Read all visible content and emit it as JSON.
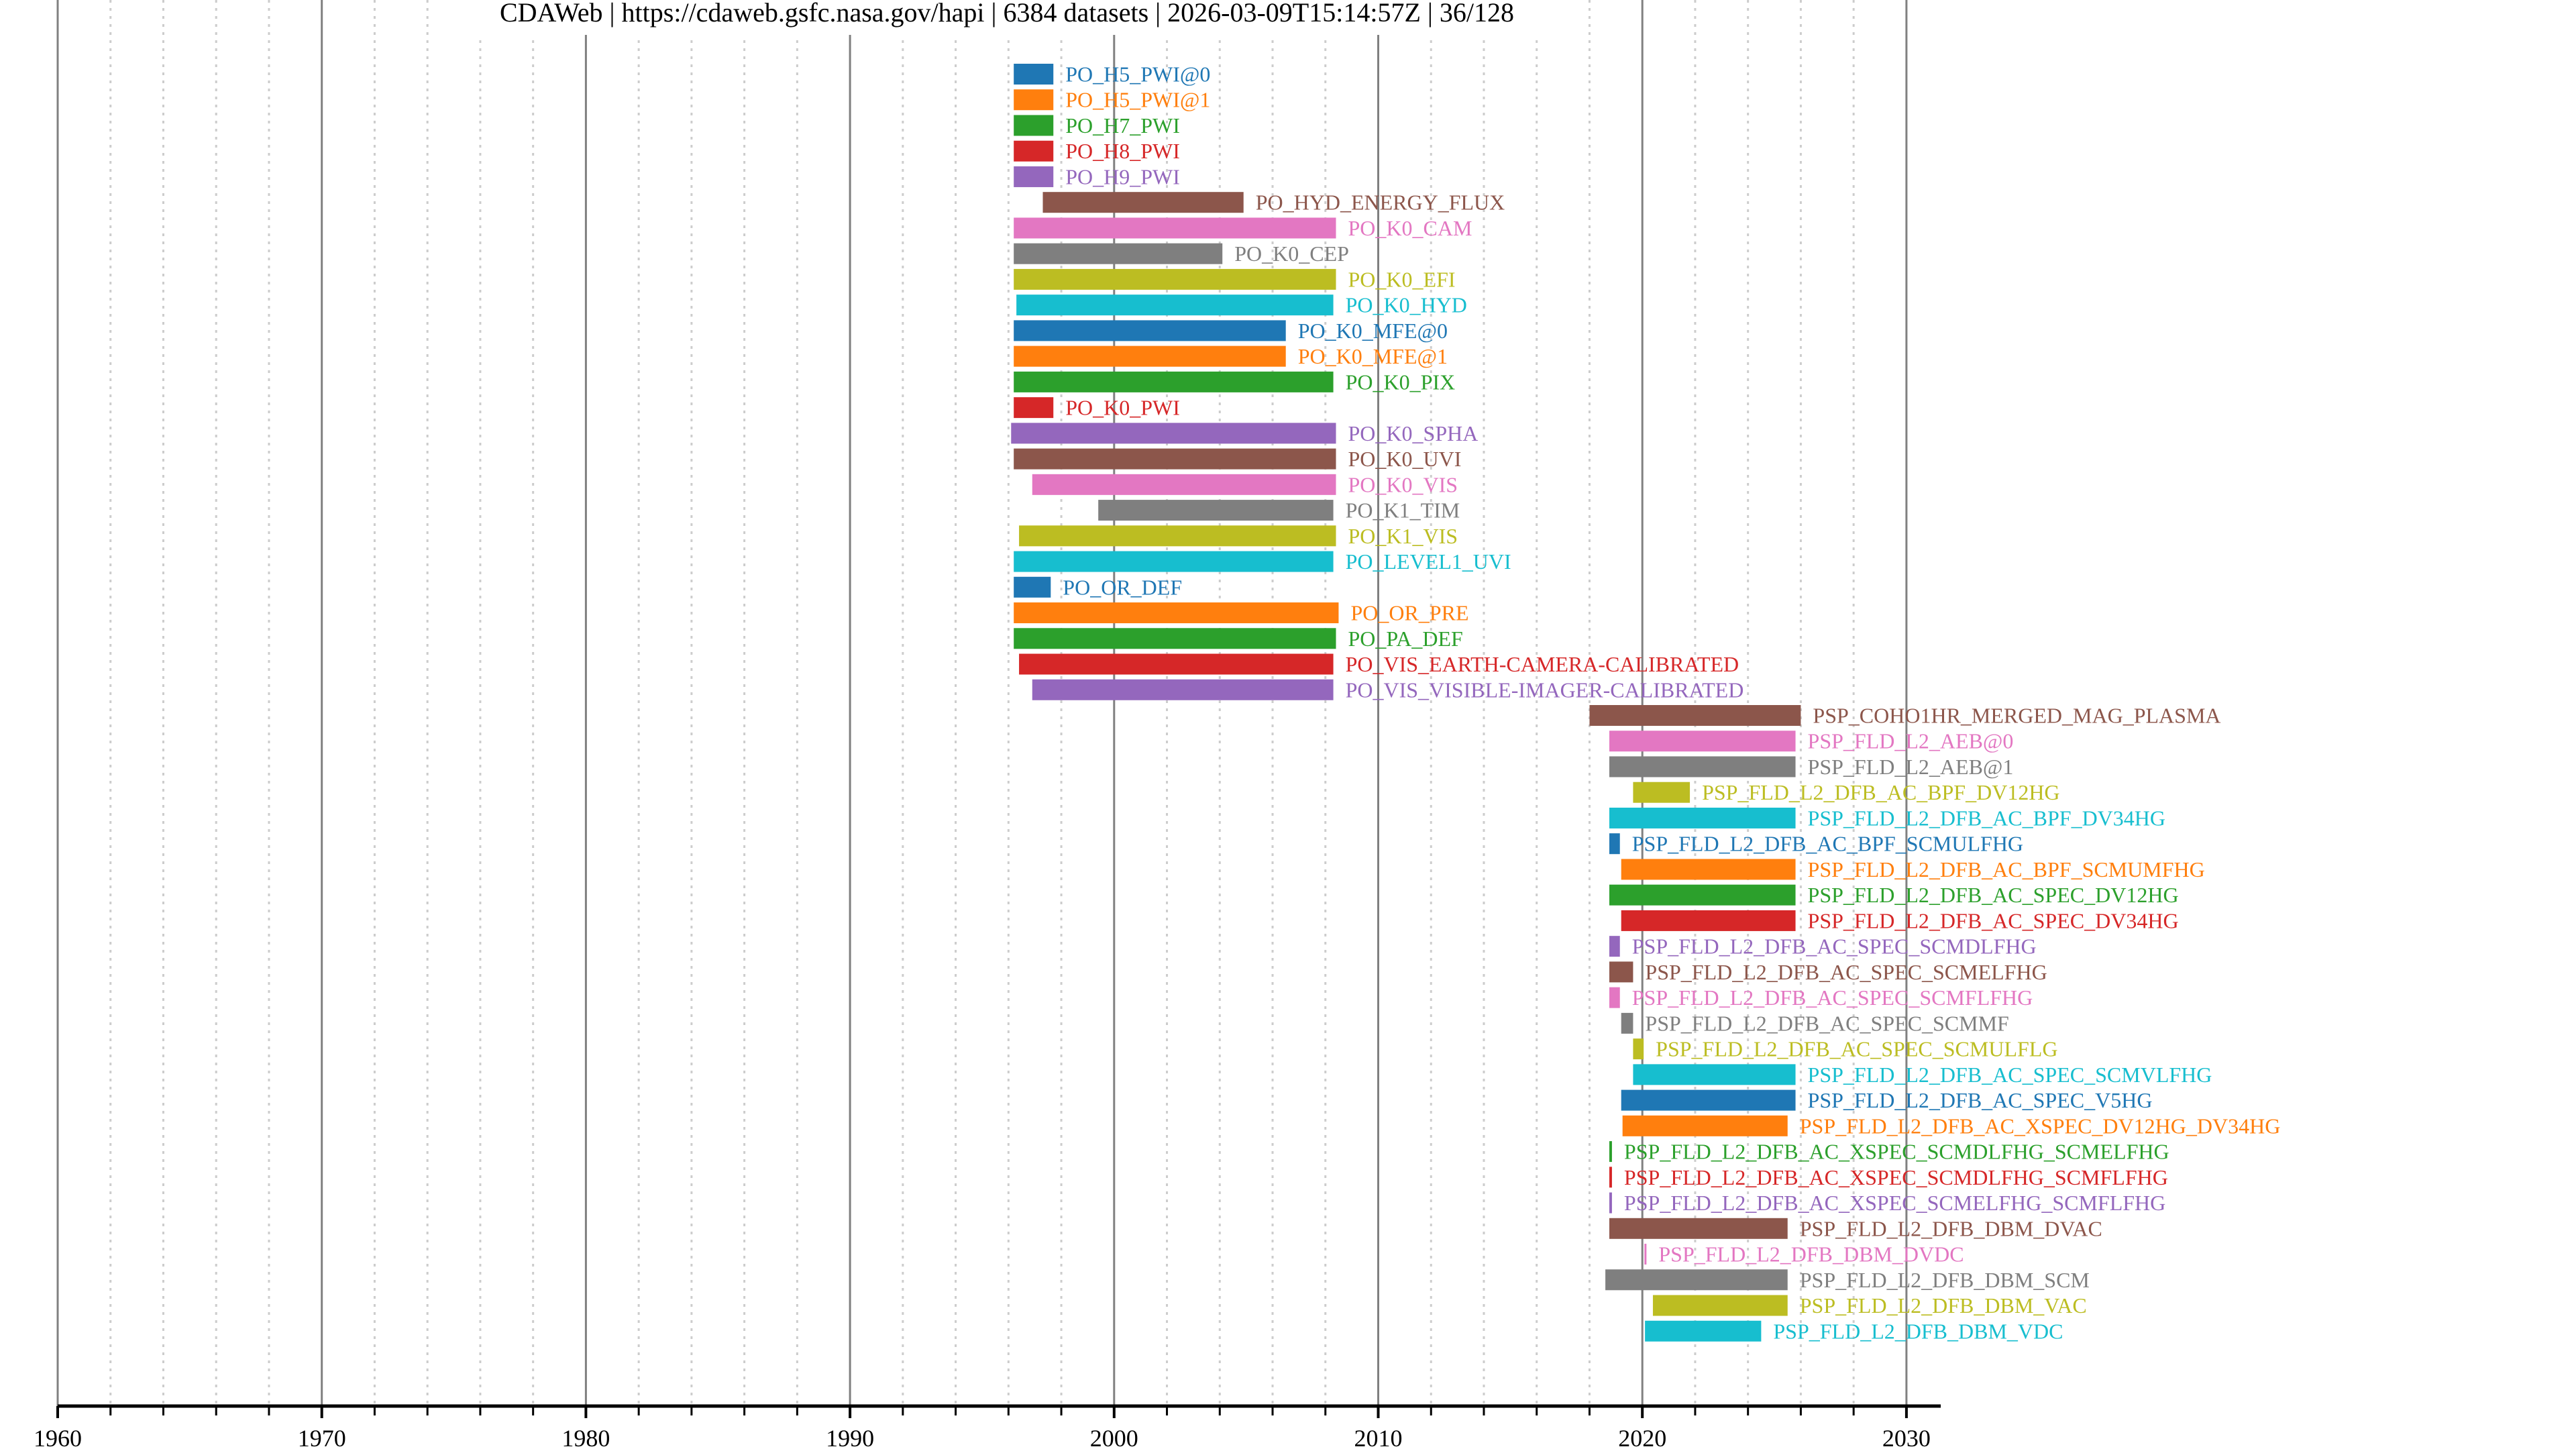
{
  "chart_data": {
    "type": "bar",
    "orientation": "horizontal-timeline",
    "title": "CDAWeb | https://cdaweb.gsfc.nasa.gov/hapi | 6384 datasets | 2026-03-09T15:14:57Z | 36/128",
    "xlabel": "",
    "ylabel": "",
    "xlim": [
      1960,
      2031.2
    ],
    "xticks": [
      1960,
      1970,
      1980,
      1990,
      2000,
      2010,
      2020,
      2030
    ],
    "xtick_labels": [
      "1960",
      "1970",
      "1980",
      "1990",
      "2000",
      "2010",
      "2020",
      "2030"
    ],
    "minor_tick_step_years": 2,
    "grid": true,
    "palette": [
      "#1f77b4",
      "#ff7f0e",
      "#2ca02c",
      "#d62728",
      "#9467bd",
      "#8c564b",
      "#e377c2",
      "#7f7f7f",
      "#bcbd22",
      "#17becf"
    ],
    "series": [
      {
        "name": "PO_H5_PWI@0",
        "start": 1996.2,
        "stop": 1997.7
      },
      {
        "name": "PO_H5_PWI@1",
        "start": 1996.2,
        "stop": 1997.7
      },
      {
        "name": "PO_H7_PWI",
        "start": 1996.2,
        "stop": 1997.7
      },
      {
        "name": "PO_H8_PWI",
        "start": 1996.2,
        "stop": 1997.7
      },
      {
        "name": "PO_H9_PWI",
        "start": 1996.2,
        "stop": 1997.7
      },
      {
        "name": "PO_HYD_ENERGY_FLUX",
        "start": 1997.3,
        "stop": 2004.9
      },
      {
        "name": "PO_K0_CAM",
        "start": 1996.2,
        "stop": 2008.4
      },
      {
        "name": "PO_K0_CEP",
        "start": 1996.2,
        "stop": 2004.1
      },
      {
        "name": "PO_K0_EFI",
        "start": 1996.2,
        "stop": 2008.4
      },
      {
        "name": "PO_K0_HYD",
        "start": 1996.3,
        "stop": 2008.3
      },
      {
        "name": "PO_K0_MFE@0",
        "start": 1996.2,
        "stop": 2006.5
      },
      {
        "name": "PO_K0_MFE@1",
        "start": 1996.2,
        "stop": 2006.5
      },
      {
        "name": "PO_K0_PIX",
        "start": 1996.2,
        "stop": 2008.3
      },
      {
        "name": "PO_K0_PWI",
        "start": 1996.2,
        "stop": 1997.7
      },
      {
        "name": "PO_K0_SPHA",
        "start": 1996.1,
        "stop": 2008.4
      },
      {
        "name": "PO_K0_UVI",
        "start": 1996.2,
        "stop": 2008.4
      },
      {
        "name": "PO_K0_VIS",
        "start": 1996.9,
        "stop": 2008.4
      },
      {
        "name": "PO_K1_TIM",
        "start": 1999.4,
        "stop": 2008.3
      },
      {
        "name": "PO_K1_VIS",
        "start": 1996.4,
        "stop": 2008.4
      },
      {
        "name": "PO_LEVEL1_UVI",
        "start": 1996.2,
        "stop": 2008.3
      },
      {
        "name": "PO_OR_DEF",
        "start": 1996.2,
        "stop": 1997.6
      },
      {
        "name": "PO_OR_PRE",
        "start": 1996.2,
        "stop": 2008.5
      },
      {
        "name": "PO_PA_DEF",
        "start": 1996.2,
        "stop": 2008.4
      },
      {
        "name": "PO_VIS_EARTH-CAMERA-CALIBRATED",
        "start": 1996.4,
        "stop": 2008.3
      },
      {
        "name": "PO_VIS_VISIBLE-IMAGER-CALIBRATED",
        "start": 1996.9,
        "stop": 2008.3
      },
      {
        "name": "PSP_COHO1HR_MERGED_MAG_PLASMA",
        "start": 2018.0,
        "stop": 2026.0
      },
      {
        "name": "PSP_FLD_L2_AEB@0",
        "start": 2018.75,
        "stop": 2025.8
      },
      {
        "name": "PSP_FLD_L2_AEB@1",
        "start": 2018.75,
        "stop": 2025.8
      },
      {
        "name": "PSP_FLD_L2_DFB_AC_BPF_DV12HG",
        "start": 2019.65,
        "stop": 2021.8
      },
      {
        "name": "PSP_FLD_L2_DFB_AC_BPF_DV34HG",
        "start": 2018.75,
        "stop": 2025.8
      },
      {
        "name": "PSP_FLD_L2_DFB_AC_BPF_SCMULFHG",
        "start": 2018.75,
        "stop": 2019.15
      },
      {
        "name": "PSP_FLD_L2_DFB_AC_BPF_SCMUMFHG",
        "start": 2019.2,
        "stop": 2025.8
      },
      {
        "name": "PSP_FLD_L2_DFB_AC_SPEC_DV12HG",
        "start": 2018.75,
        "stop": 2025.8
      },
      {
        "name": "PSP_FLD_L2_DFB_AC_SPEC_DV34HG",
        "start": 2019.2,
        "stop": 2025.8
      },
      {
        "name": "PSP_FLD_L2_DFB_AC_SPEC_SCMDLFHG",
        "start": 2018.75,
        "stop": 2019.15
      },
      {
        "name": "PSP_FLD_L2_DFB_AC_SPEC_SCMELFHG",
        "start": 2018.75,
        "stop": 2019.65
      },
      {
        "name": "PSP_FLD_L2_DFB_AC_SPEC_SCMFLFHG",
        "start": 2018.75,
        "stop": 2019.15
      },
      {
        "name": "PSP_FLD_L2_DFB_AC_SPEC_SCMMF",
        "start": 2019.2,
        "stop": 2019.65
      },
      {
        "name": "PSP_FLD_L2_DFB_AC_SPEC_SCMULFLG",
        "start": 2019.65,
        "stop": 2020.05
      },
      {
        "name": "PSP_FLD_L2_DFB_AC_SPEC_SCMVLFHG",
        "start": 2019.65,
        "stop": 2025.8
      },
      {
        "name": "PSP_FLD_L2_DFB_AC_SPEC_V5HG",
        "start": 2019.2,
        "stop": 2025.8
      },
      {
        "name": "PSP_FLD_L2_DFB_AC_XSPEC_DV12HG_DV34HG",
        "start": 2019.25,
        "stop": 2025.5
      },
      {
        "name": "PSP_FLD_L2_DFB_AC_XSPEC_SCMDLFHG_SCMELFHG",
        "start": 2018.75,
        "stop": 2018.85
      },
      {
        "name": "PSP_FLD_L2_DFB_AC_XSPEC_SCMDLFHG_SCMFLFHG",
        "start": 2018.75,
        "stop": 2018.85
      },
      {
        "name": "PSP_FLD_L2_DFB_AC_XSPEC_SCMELFHG_SCMFLFHG",
        "start": 2018.75,
        "stop": 2018.85
      },
      {
        "name": "PSP_FLD_L2_DFB_DBM_DVAC",
        "start": 2018.75,
        "stop": 2025.5
      },
      {
        "name": "PSP_FLD_L2_DFB_DBM_DVDC",
        "start": 2020.08,
        "stop": 2020.12
      },
      {
        "name": "PSP_FLD_L2_DFB_DBM_SCM",
        "start": 2018.6,
        "stop": 2025.5
      },
      {
        "name": "PSP_FLD_L2_DFB_DBM_VAC",
        "start": 2020.4,
        "stop": 2025.5
      },
      {
        "name": "PSP_FLD_L2_DFB_DBM_VDC",
        "start": 2020.1,
        "stop": 2024.5
      }
    ]
  }
}
